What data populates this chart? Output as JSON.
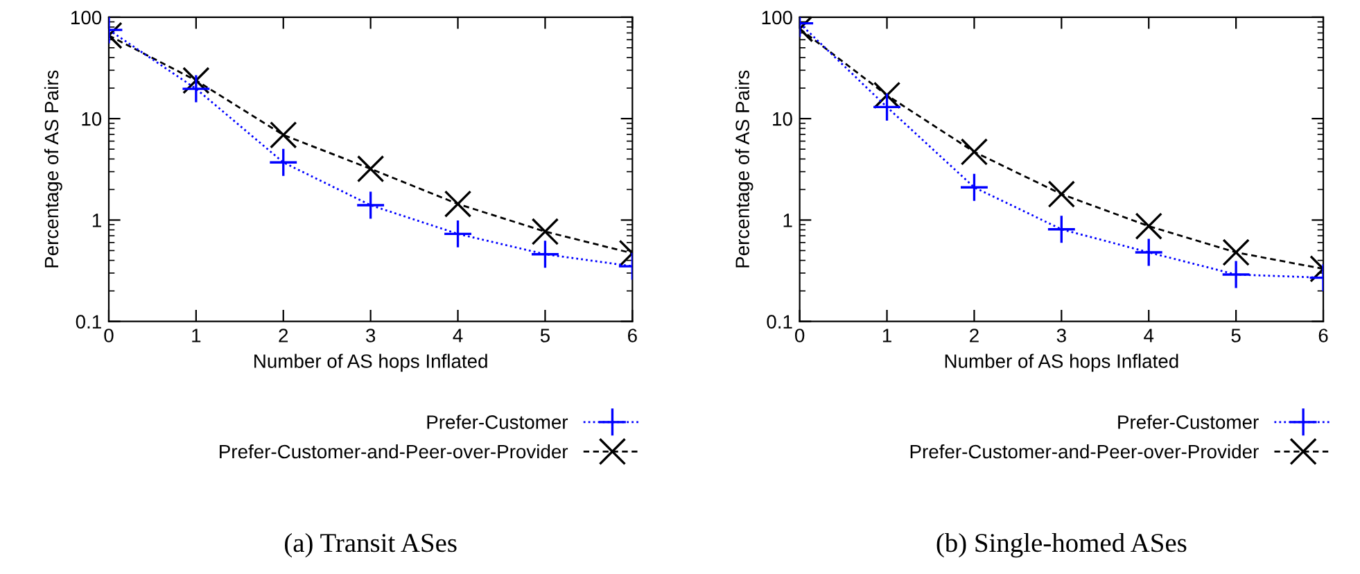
{
  "chart_data": [
    {
      "type": "line",
      "xlabel": "Number of AS hops Inflated",
      "ylabel": "Percentage of AS Pairs",
      "x": [
        0,
        1,
        2,
        3,
        4,
        5,
        6
      ],
      "xlim": [
        0,
        6
      ],
      "xticks": [
        0,
        1,
        2,
        3,
        4,
        5,
        6
      ],
      "ylim": [
        0.1,
        100
      ],
      "yticks": [
        0.1,
        1,
        10,
        100
      ],
      "log": "y",
      "grid": false,
      "legend": "bottom",
      "annotations": [
        "(a) Transit ASes"
      ],
      "series": [
        {
          "name": "Prefer-Customer",
          "color": "#0000ff",
          "marker": "cross",
          "line_style": "dotted",
          "values": [
            75,
            19.7,
            3.7,
            1.4,
            0.73,
            0.46,
            0.35
          ]
        },
        {
          "name": "Prefer-Customer-and-Peer-over-Provider",
          "color": "#000000",
          "marker": "x",
          "line_style": "dashed",
          "values": [
            66,
            23.8,
            6.9,
            3.2,
            1.44,
            0.77,
            0.47
          ]
        }
      ]
    },
    {
      "type": "line",
      "xlabel": "Number of AS hops Inflated",
      "ylabel": "Percentage of AS Pairs",
      "x": [
        0,
        1,
        2,
        3,
        4,
        5,
        6
      ],
      "xlim": [
        0,
        6
      ],
      "xticks": [
        0,
        1,
        2,
        3,
        4,
        5,
        6
      ],
      "ylim": [
        0.1,
        100
      ],
      "yticks": [
        0.1,
        1,
        10,
        100
      ],
      "log": "y",
      "grid": false,
      "legend": "bottom",
      "annotations": [
        "(b) Single-homed ASes"
      ],
      "series": [
        {
          "name": "Prefer-Customer",
          "color": "#0000ff",
          "marker": "cross",
          "line_style": "dotted",
          "values": [
            87,
            13,
            2.1,
            0.81,
            0.48,
            0.29,
            0.27
          ]
        },
        {
          "name": "Prefer-Customer-and-Peer-over-Provider",
          "color": "#000000",
          "marker": "x",
          "line_style": "dashed",
          "values": [
            77,
            17,
            4.7,
            1.8,
            0.87,
            0.48,
            0.33
          ]
        }
      ]
    }
  ]
}
